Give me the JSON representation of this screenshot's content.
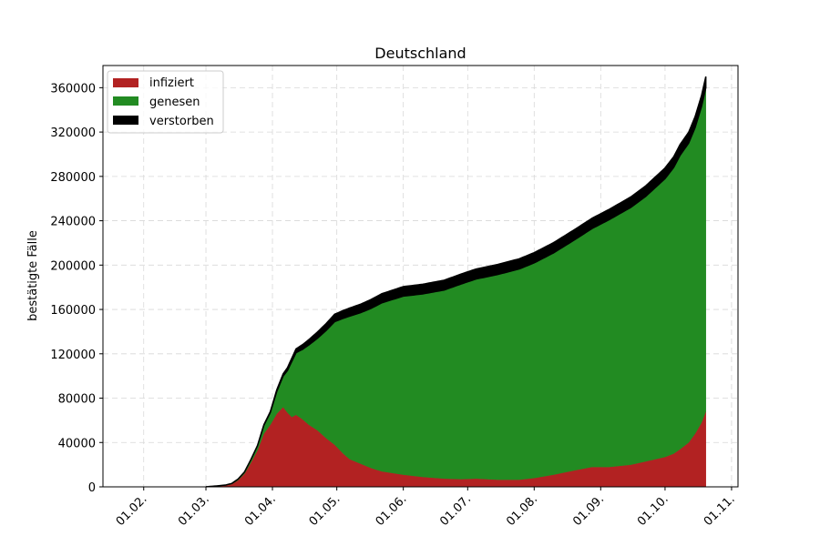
{
  "chart_data": {
    "type": "area",
    "stacked": true,
    "title": "Deutschland",
    "xlabel": "",
    "ylabel": "bestätigte Fälle",
    "grid": true,
    "legend_position": "top-left",
    "x_start": "2020-01-13",
    "x_end": "2020-11-04",
    "xtick_dates": [
      "2020-02-01",
      "2020-03-01",
      "2020-04-01",
      "2020-05-01",
      "2020-06-01",
      "2020-07-01",
      "2020-08-01",
      "2020-09-01",
      "2020-10-01",
      "2020-11-01"
    ],
    "xtick_labels": [
      "01.02.",
      "01.03.",
      "01.04.",
      "01.05.",
      "01.06.",
      "01.07.",
      "01.08.",
      "01.09.",
      "01.10.",
      "01.11."
    ],
    "ylim": [
      0,
      380000
    ],
    "yticks": [
      0,
      40000,
      80000,
      120000,
      160000,
      200000,
      240000,
      280000,
      320000,
      360000
    ],
    "ytick_labels": [
      "0",
      "40000",
      "80000",
      "120000",
      "160000",
      "200000",
      "240000",
      "280000",
      "320000",
      "360000"
    ],
    "series": [
      {
        "name": "infiziert",
        "color": "#b22222",
        "dates": [
          "2020-03-01",
          "2020-03-05",
          "2020-03-10",
          "2020-03-13",
          "2020-03-16",
          "2020-03-19",
          "2020-03-22",
          "2020-03-25",
          "2020-03-28",
          "2020-03-31",
          "2020-04-03",
          "2020-04-06",
          "2020-04-08",
          "2020-04-10",
          "2020-04-12",
          "2020-04-15",
          "2020-04-18",
          "2020-04-22",
          "2020-04-26",
          "2020-04-30",
          "2020-05-04",
          "2020-05-07",
          "2020-05-12",
          "2020-05-17",
          "2020-05-22",
          "2020-06-01",
          "2020-06-10",
          "2020-06-20",
          "2020-06-28",
          "2020-07-05",
          "2020-07-15",
          "2020-07-25",
          "2020-08-01",
          "2020-08-10",
          "2020-08-20",
          "2020-08-28",
          "2020-09-05",
          "2020-09-15",
          "2020-09-22",
          "2020-10-01",
          "2020-10-05",
          "2020-10-08",
          "2020-10-12",
          "2020-10-15",
          "2020-10-18",
          "2020-10-20"
        ],
        "values": [
          100,
          500,
          1200,
          2500,
          6000,
          12000,
          22000,
          33000,
          48000,
          56000,
          66000,
          72000,
          67000,
          63000,
          65000,
          61000,
          56000,
          51000,
          44000,
          38000,
          30000,
          25000,
          21000,
          17000,
          14000,
          11000,
          9000,
          7500,
          7000,
          7500,
          6500,
          6500,
          8000,
          11000,
          15000,
          18000,
          18000,
          20000,
          23000,
          27000,
          30000,
          34000,
          40000,
          48000,
          58000,
          68000
        ]
      },
      {
        "name": "genesen",
        "color": "#228b22",
        "dates": [
          "2020-03-01",
          "2020-03-13",
          "2020-03-19",
          "2020-03-25",
          "2020-03-31",
          "2020-04-03",
          "2020-04-06",
          "2020-04-08",
          "2020-04-10",
          "2020-04-12",
          "2020-04-15",
          "2020-04-18",
          "2020-04-22",
          "2020-04-26",
          "2020-04-30",
          "2020-05-04",
          "2020-05-07",
          "2020-05-12",
          "2020-05-17",
          "2020-05-22",
          "2020-06-01",
          "2020-06-10",
          "2020-06-20",
          "2020-06-28",
          "2020-07-05",
          "2020-07-15",
          "2020-07-25",
          "2020-08-01",
          "2020-08-10",
          "2020-08-20",
          "2020-08-28",
          "2020-09-05",
          "2020-09-15",
          "2020-09-22",
          "2020-10-01",
          "2020-10-05",
          "2020-10-08",
          "2020-10-12",
          "2020-10-15",
          "2020-10-18",
          "2020-10-20"
        ],
        "values": [
          0,
          500,
          1500,
          4000,
          11000,
          20000,
          28000,
          38000,
          50000,
          56000,
          63000,
          72000,
          83000,
          97000,
          111000,
          122000,
          129000,
          136000,
          144000,
          152000,
          161000,
          165000,
          170000,
          176000,
          180000,
          185000,
          190000,
          194000,
          200000,
          208000,
          215000,
          223000,
          232000,
          239000,
          251000,
          258000,
          265000,
          270000,
          276000,
          285000,
          292000
        ]
      },
      {
        "name": "verstorben",
        "color": "#000000",
        "dates": [
          "2020-03-01",
          "2020-03-19",
          "2020-03-25",
          "2020-03-31",
          "2020-04-06",
          "2020-04-10",
          "2020-04-15",
          "2020-04-22",
          "2020-04-30",
          "2020-05-07",
          "2020-05-17",
          "2020-06-01",
          "2020-07-01",
          "2020-08-01",
          "2020-09-01",
          "2020-10-01",
          "2020-10-20"
        ],
        "values": [
          0,
          50,
          200,
          800,
          2000,
          3000,
          4200,
          5700,
          6700,
          7300,
          8000,
          8600,
          9000,
          9200,
          9300,
          9600,
          10000
        ]
      }
    ]
  }
}
